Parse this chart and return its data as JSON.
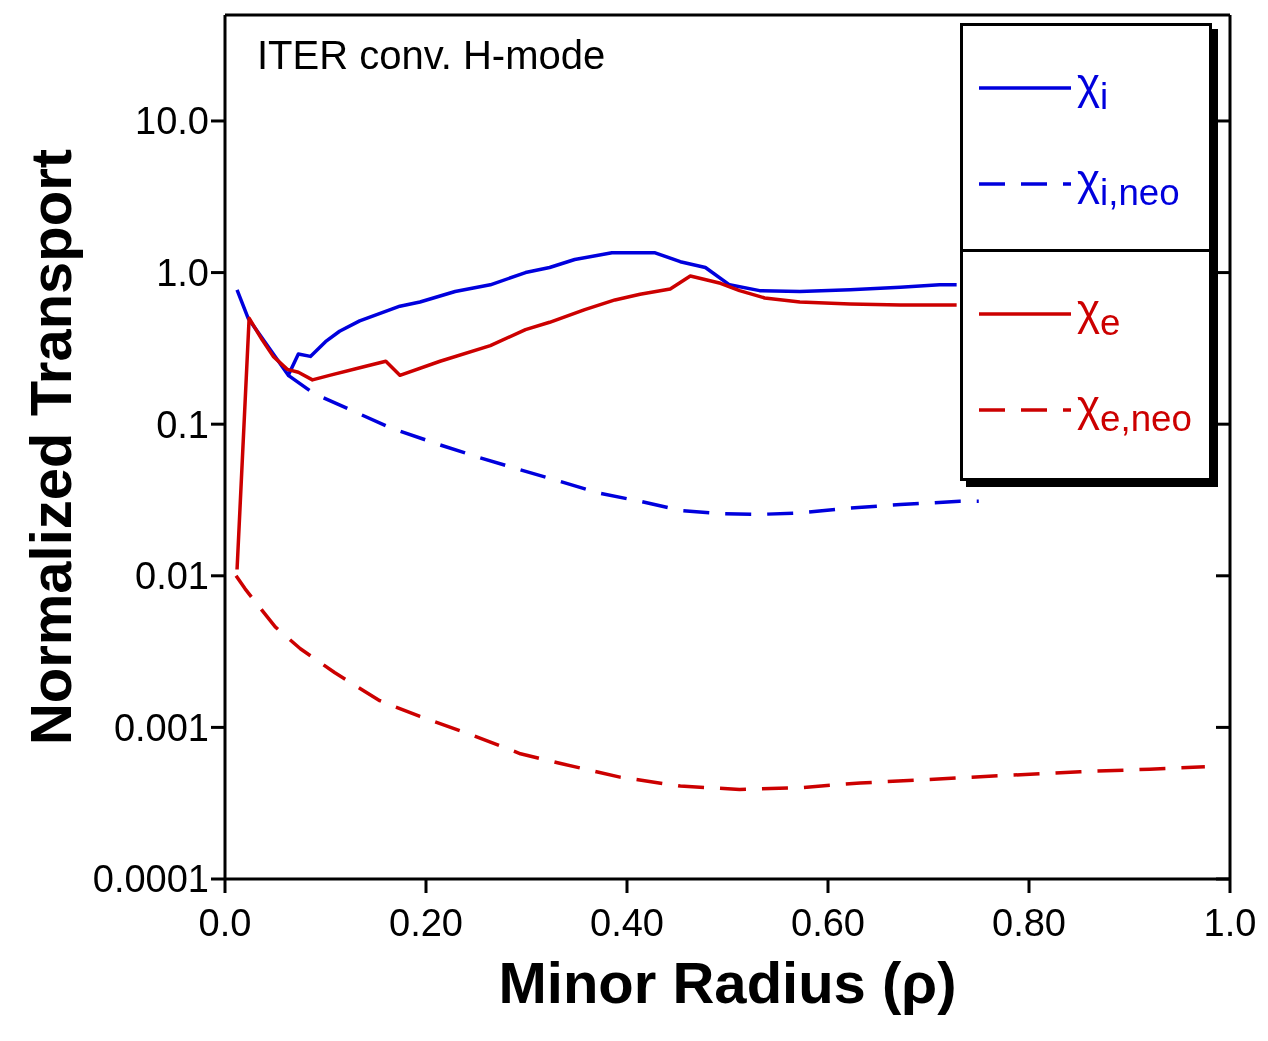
{
  "chart_data": {
    "type": "line",
    "xlabel": "Minor Radius (ρ)",
    "ylabel": "Normalized Transport",
    "log": "y",
    "legend": "top right",
    "grid": false,
    "marker": "none",
    "annotations": [
      "ITER conv. H-mode"
    ],
    "xlim": [
      0,
      1
    ],
    "xticks": [
      {
        "value": 0,
        "label": "0.0"
      },
      {
        "value": 0.2,
        "label": "0.20"
      },
      {
        "value": 0.4,
        "label": "0.40"
      },
      {
        "value": 0.6,
        "label": "0.60"
      },
      {
        "value": 0.8,
        "label": "0.80"
      },
      {
        "value": 1,
        "label": "1.0"
      }
    ],
    "ylim": [
      0.0001,
      50
    ],
    "yticks": [
      0.0001,
      0.001,
      0.01,
      0.1,
      {
        "value": 1,
        "label": "1.0"
      },
      {
        "value": 10,
        "label": "10.0"
      }
    ],
    "series": [
      {
        "name": "χ$_{i}$",
        "color": "#0000dd",
        "line_style": "solid",
        "x": [
          0.012,
          0.023,
          0.063,
          0.073,
          0.085,
          0.1,
          0.114,
          0.134,
          0.174,
          0.194,
          0.229,
          0.264,
          0.299,
          0.323,
          0.348,
          0.385,
          0.428,
          0.453,
          0.478,
          0.502,
          0.532,
          0.572,
          0.622,
          0.672,
          0.711,
          0.728
        ],
        "values": [
          0.77,
          0.5,
          0.21,
          0.29,
          0.28,
          0.35,
          0.41,
          0.48,
          0.6,
          0.64,
          0.75,
          0.83,
          1.0,
          1.08,
          1.22,
          1.35,
          1.35,
          1.18,
          1.08,
          0.83,
          0.76,
          0.75,
          0.77,
          0.8,
          0.83,
          0.83
        ]
      },
      {
        "name": "χ$_{i,neo}$",
        "color": "#0000dd",
        "line_style": "dashed",
        "x": [
          0.063,
          0.088,
          0.124,
          0.164,
          0.214,
          0.254,
          0.294,
          0.333,
          0.373,
          0.413,
          0.453,
          0.493,
          0.532,
          0.572,
          0.622,
          0.672,
          0.731,
          0.75
        ],
        "values": [
          0.21,
          0.16,
          0.125,
          0.095,
          0.073,
          0.06,
          0.05,
          0.042,
          0.035,
          0.031,
          0.027,
          0.0257,
          0.0254,
          0.026,
          0.028,
          0.0295,
          0.031,
          0.031
        ]
      },
      {
        "name": "χ$_{e}$",
        "color": "#cc0000",
        "line_style": "solid",
        "x": [
          0.012,
          0.024,
          0.037,
          0.048,
          0.062,
          0.073,
          0.087,
          0.104,
          0.139,
          0.16,
          0.174,
          0.214,
          0.264,
          0.299,
          0.323,
          0.358,
          0.388,
          0.413,
          0.443,
          0.463,
          0.493,
          0.512,
          0.537,
          0.572,
          0.622,
          0.672,
          0.728
        ],
        "values": [
          0.011,
          0.5,
          0.36,
          0.28,
          0.23,
          0.22,
          0.196,
          0.21,
          0.24,
          0.26,
          0.21,
          0.26,
          0.33,
          0.42,
          0.47,
          0.57,
          0.66,
          0.72,
          0.78,
          0.95,
          0.85,
          0.76,
          0.68,
          0.64,
          0.62,
          0.61,
          0.61
        ]
      },
      {
        "name": "χ$_{e,neo}$",
        "color": "#cc0000",
        "line_style": "dashed",
        "x": [
          0.011,
          0.02,
          0.032,
          0.05,
          0.075,
          0.109,
          0.154,
          0.194,
          0.244,
          0.294,
          0.333,
          0.393,
          0.453,
          0.512,
          0.572,
          0.632,
          0.692,
          0.771,
          0.851,
          0.92,
          0.975
        ],
        "values": [
          0.01,
          0.0082,
          0.0065,
          0.0046,
          0.0033,
          0.0023,
          0.0015,
          0.00118,
          0.0009,
          0.00067,
          0.00058,
          0.00047,
          0.00041,
          0.00039,
          0.0004,
          0.00043,
          0.00045,
          0.00048,
          0.00051,
          0.00053,
          0.00055
        ]
      }
    ]
  }
}
